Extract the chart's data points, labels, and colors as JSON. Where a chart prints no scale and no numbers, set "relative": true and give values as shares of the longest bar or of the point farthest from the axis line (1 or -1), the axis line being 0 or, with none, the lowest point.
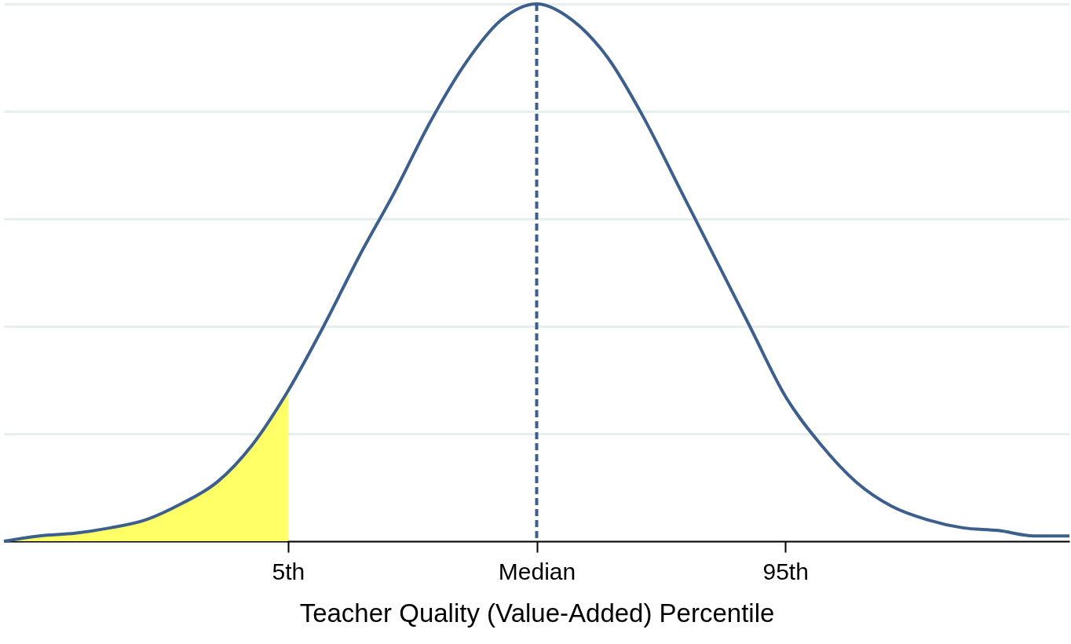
{
  "chart_data": {
    "type": "line",
    "relative": true,
    "xlabel": "Teacher Quality (Value-Added) Percentile",
    "categories": [
      null,
      null,
      null,
      null,
      null,
      null,
      null,
      null,
      "5th",
      null,
      null,
      null,
      null,
      null,
      null,
      "Median",
      null,
      null,
      null,
      null,
      null,
      null,
      "95th",
      null,
      null,
      null,
      null,
      null,
      null,
      null,
      null
    ],
    "series": [
      {
        "type": "area",
        "color": "#ffff66",
        "values": [
          0,
          0.01,
          0.015,
          0.025,
          0.04,
          0.07,
          0.11,
          0.18,
          0.28,
          null,
          null,
          null,
          null,
          null,
          null,
          null,
          null,
          null,
          null,
          null,
          null,
          null,
          null,
          null,
          null,
          null,
          null,
          null,
          null,
          null,
          null
        ]
      },
      {
        "type": "line",
        "color": "#3d5f8d",
        "values": [
          0,
          0.01,
          0.015,
          0.025,
          0.04,
          0.07,
          0.11,
          0.18,
          0.28,
          0.4,
          0.53,
          0.65,
          0.78,
          0.89,
          0.97,
          1,
          0.97,
          0.9,
          0.79,
          0.66,
          0.53,
          0.4,
          0.27,
          0.18,
          0.11,
          0.065,
          0.04,
          0.025,
          0.02,
          0.01,
          0.01
        ]
      }
    ],
    "ref_lines": [
      {
        "axis": "x",
        "value": "Median",
        "color": "#3d5f8d",
        "line_style": "dashed"
      }
    ],
    "grid": "y"
  }
}
